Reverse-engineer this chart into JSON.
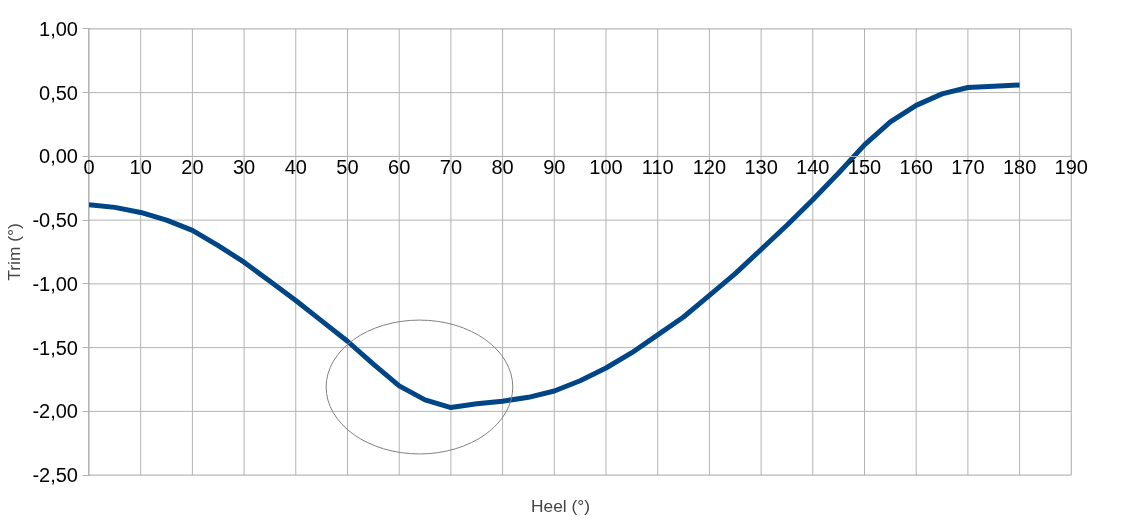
{
  "chart_data": {
    "type": "line",
    "xlabel": "Heel (°)",
    "ylabel": "Trim (°)",
    "x": [
      0,
      5,
      10,
      15,
      20,
      25,
      30,
      35,
      40,
      45,
      50,
      55,
      60,
      65,
      70,
      75,
      80,
      85,
      90,
      95,
      100,
      105,
      110,
      115,
      120,
      125,
      130,
      135,
      140,
      145,
      150,
      155,
      160,
      165,
      170,
      175,
      180
    ],
    "series": [
      {
        "color": "#004586",
        "values": [
          -0.38,
          -0.4,
          -0.44,
          -0.5,
          -0.58,
          -0.7,
          -0.83,
          -0.98,
          -1.13,
          -1.29,
          -1.45,
          -1.63,
          -1.8,
          -1.91,
          -1.97,
          -1.94,
          -1.92,
          -1.89,
          -1.84,
          -1.76,
          -1.66,
          -1.54,
          -1.4,
          -1.26,
          -1.09,
          -0.92,
          -0.73,
          -0.54,
          -0.34,
          -0.13,
          0.09,
          0.27,
          0.4,
          0.49,
          0.54,
          0.55,
          0.56
        ]
      }
    ],
    "xlim": [
      0,
      190
    ],
    "xticks": [
      0,
      10,
      20,
      30,
      40,
      50,
      60,
      70,
      80,
      90,
      100,
      110,
      120,
      130,
      140,
      150,
      160,
      170,
      180,
      190
    ],
    "ylim": [
      -2.5,
      1.0
    ],
    "yticks": [
      {
        "value": -2.5,
        "label": "-2,50"
      },
      {
        "value": -2.0,
        "label": "-2,00"
      },
      {
        "value": -1.5,
        "label": "-1,50"
      },
      {
        "value": -1.0,
        "label": "-1,00"
      },
      {
        "value": -0.5,
        "label": "-0,50"
      },
      {
        "value": 0.0,
        "label": "0,00"
      },
      {
        "value": 0.5,
        "label": "0,50"
      },
      {
        "value": 1.0,
        "label": "1,00"
      }
    ],
    "grid": true,
    "marker": "none",
    "line_style": "solid"
  }
}
